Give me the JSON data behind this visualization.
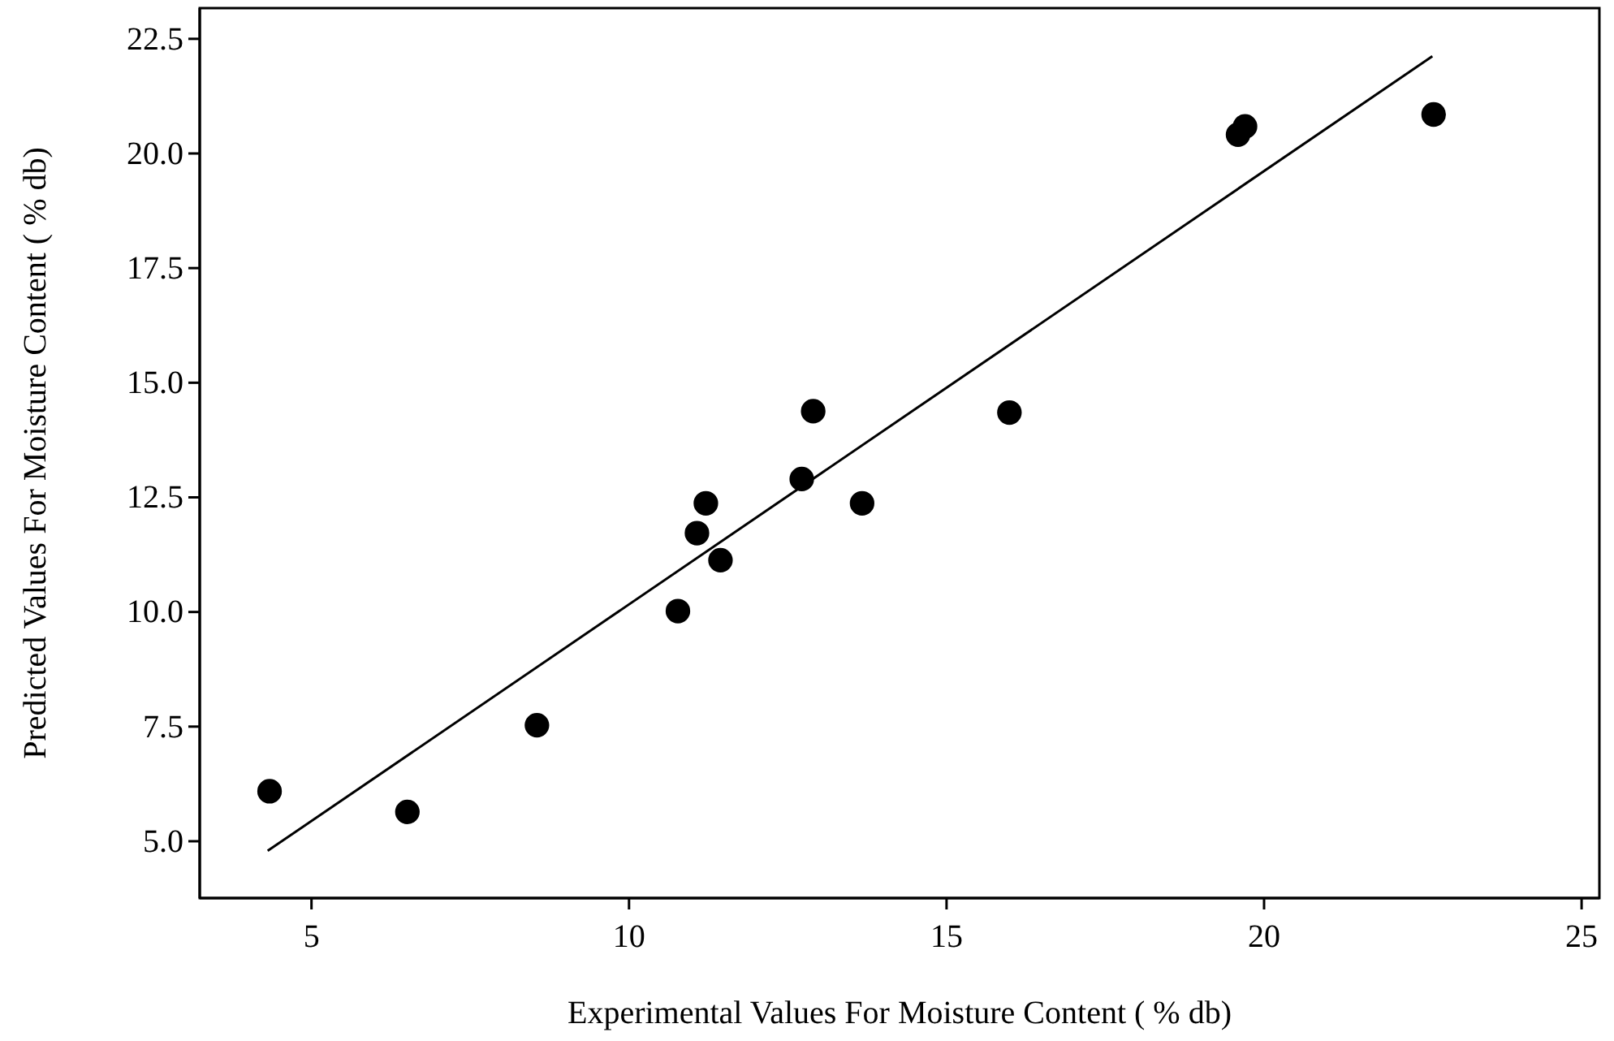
{
  "chart_data": {
    "type": "scatter",
    "xlabel": "Experimental Values For Moisture Content ( % db)",
    "ylabel": "Predicted Values For Moisture Content ( % db)",
    "xlim": [
      3.24,
      25.28
    ],
    "ylim": [
      3.76,
      23.17
    ],
    "xticks": [
      5,
      10,
      15,
      20,
      25
    ],
    "yticks": [
      {
        "value": 5,
        "label": "5.0"
      },
      {
        "value": 7.5,
        "label": "7.5"
      },
      {
        "value": 10,
        "label": "10.0"
      },
      {
        "value": 12.5,
        "label": "12.5"
      },
      {
        "value": 15,
        "label": "15.0"
      },
      {
        "value": 17.5,
        "label": "17.5"
      },
      {
        "value": 20,
        "label": "20.0"
      },
      {
        "value": 22.5,
        "label": "22.5"
      }
    ],
    "grid": false,
    "series": [
      {
        "marker": "circle",
        "color": "#000000",
        "x": [
          4.34,
          6.51,
          8.55,
          10.77,
          11.07,
          11.21,
          11.44,
          12.72,
          12.9,
          13.67,
          15.99,
          19.59,
          19.7,
          22.67
        ],
        "values": [
          6.09,
          5.64,
          7.53,
          10.02,
          11.72,
          12.37,
          11.13,
          12.9,
          14.38,
          12.37,
          14.35,
          20.41,
          20.59,
          20.85
        ]
      },
      {
        "type": "line",
        "color": "#000000",
        "line_style": "solid",
        "x": [
          4.31,
          22.65
        ],
        "values": [
          4.79,
          22.12
        ]
      }
    ]
  }
}
